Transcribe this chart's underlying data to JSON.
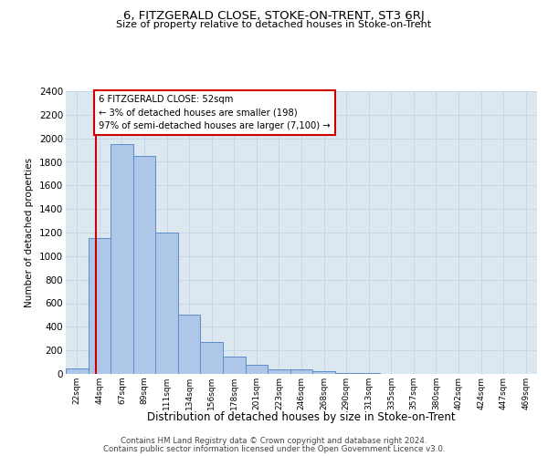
{
  "title": "6, FITZGERALD CLOSE, STOKE-ON-TRENT, ST3 6RJ",
  "subtitle": "Size of property relative to detached houses in Stoke-on-Trent",
  "xlabel": "Distribution of detached houses by size in Stoke-on-Trent",
  "ylabel": "Number of detached properties",
  "categories": [
    "22sqm",
    "44sqm",
    "67sqm",
    "89sqm",
    "111sqm",
    "134sqm",
    "156sqm",
    "178sqm",
    "201sqm",
    "223sqm",
    "246sqm",
    "268sqm",
    "290sqm",
    "313sqm",
    "335sqm",
    "357sqm",
    "380sqm",
    "402sqm",
    "424sqm",
    "447sqm",
    "469sqm"
  ],
  "values": [
    50,
    1150,
    1950,
    1850,
    1200,
    500,
    270,
    150,
    75,
    40,
    35,
    25,
    10,
    5,
    3,
    2,
    1,
    1,
    0,
    0,
    0
  ],
  "bar_color": "#aec6e8",
  "bar_edge_color": "#5b8dc8",
  "vline_color": "#cc0000",
  "annotation_line1": "6 FITZGERALD CLOSE: 52sqm",
  "annotation_line2": "← 3% of detached houses are smaller (198)",
  "annotation_line3": "97% of semi-detached houses are larger (7,100) →",
  "annotation_box_color": "#ffffff",
  "annotation_box_edge_color": "#cc0000",
  "ylim": [
    0,
    2400
  ],
  "yticks": [
    0,
    200,
    400,
    600,
    800,
    1000,
    1200,
    1400,
    1600,
    1800,
    2000,
    2200,
    2400
  ],
  "grid_color": "#c8d4e8",
  "background_color": "#dce8f0",
  "footer_line1": "Contains HM Land Registry data © Crown copyright and database right 2024.",
  "footer_line2": "Contains public sector information licensed under the Open Government Licence v3.0."
}
